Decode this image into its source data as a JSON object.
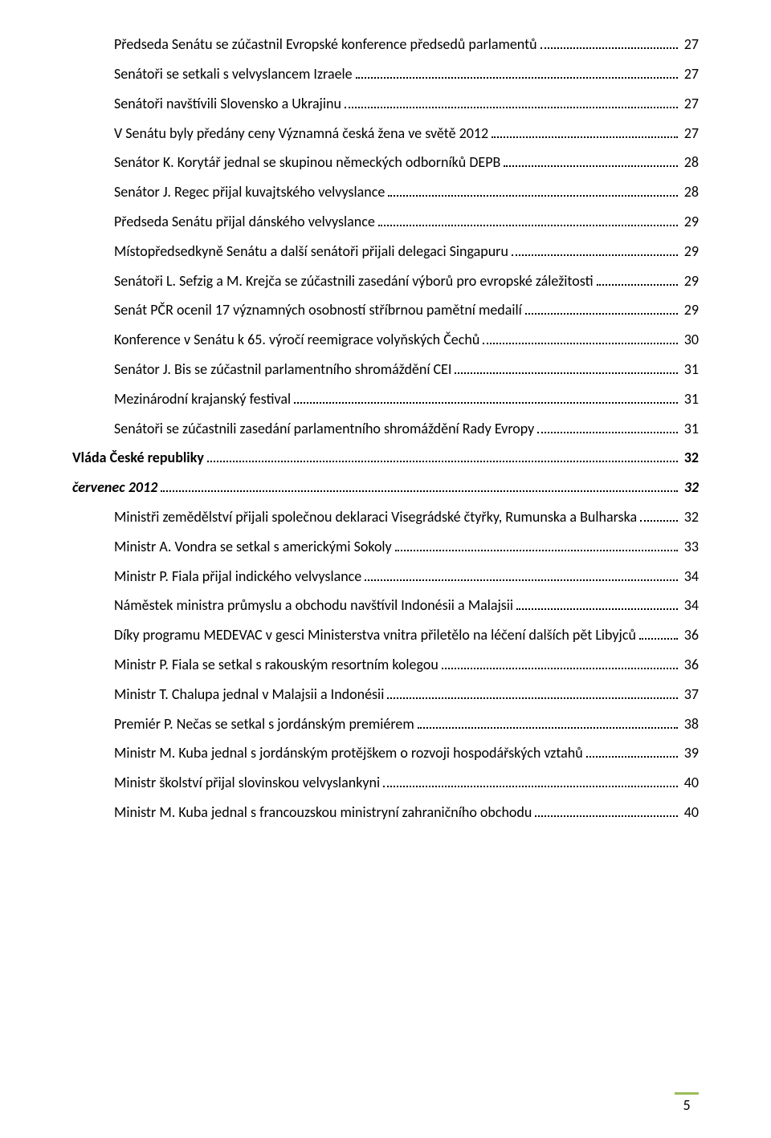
{
  "toc": [
    {
      "level": 2,
      "style": "",
      "label": "Předseda Senátu se zúčastnil Evropské konference předsedů parlamentů",
      "page": "27"
    },
    {
      "level": 2,
      "style": "",
      "label": "Senátoři se setkali s velvyslancem Izraele",
      "page": "27"
    },
    {
      "level": 2,
      "style": "",
      "label": "Senátoři navštívili Slovensko a Ukrajinu",
      "page": "27"
    },
    {
      "level": 2,
      "style": "",
      "label": "V Senátu byly předány ceny Významná česká žena ve světě 2012",
      "page": "27"
    },
    {
      "level": 2,
      "style": "",
      "label": "Senátor K. Korytář jednal se skupinou německých odborníků DEPB",
      "page": "28"
    },
    {
      "level": 2,
      "style": "",
      "label": "Senátor J. Regec přijal kuvajtského velvyslance",
      "page": "28"
    },
    {
      "level": 2,
      "style": "",
      "label": "Předseda Senátu přijal dánského velvyslance",
      "page": "29"
    },
    {
      "level": 2,
      "style": "",
      "label": "Místopředsedkyně Senátu a další senátoři přijali delegaci Singapuru",
      "page": "29"
    },
    {
      "level": 2,
      "style": "",
      "label": "Senátoři L. Sefzig a M. Krejča se zúčastnili zasedání výborů pro evropské záležitosti",
      "page": "29"
    },
    {
      "level": 2,
      "style": "",
      "label": "Senát PČR ocenil 17 významných osobností stříbrnou pamětní medailí",
      "page": "29"
    },
    {
      "level": 2,
      "style": "",
      "label": "Konference v Senátu k 65. výročí reemigrace volyňských Čechů",
      "page": "30"
    },
    {
      "level": 2,
      "style": "",
      "label": "Senátor J. Bis se zúčastnil parlamentního shromáždění CEI",
      "page": "31"
    },
    {
      "level": 2,
      "style": "",
      "label": "Mezinárodní krajanský festival",
      "page": "31"
    },
    {
      "level": 2,
      "style": "",
      "label": "Senátoři se zúčastnili zasedání parlamentního shromáždění Rady Evropy",
      "page": "31"
    },
    {
      "level": 1,
      "style": "bold",
      "label": "Vláda České republiky",
      "page": "32"
    },
    {
      "level": 1,
      "style": "italic",
      "label": "červenec 2012",
      "page": "32"
    },
    {
      "level": 2,
      "style": "",
      "label": "Ministři zemědělství přijali společnou deklaraci Visegrádské čtyřky, Rumunska a Bulharska",
      "page": "32"
    },
    {
      "level": 2,
      "style": "",
      "label": "Ministr A. Vondra se setkal s americkými Sokoly",
      "page": "33"
    },
    {
      "level": 2,
      "style": "",
      "label": "Ministr P. Fiala přijal indického velvyslance",
      "page": "34"
    },
    {
      "level": 2,
      "style": "",
      "label": "Náměstek ministra průmyslu a obchodu navštívil Indonésii a Malajsii",
      "page": "34"
    },
    {
      "level": 2,
      "style": "",
      "label": "Díky programu MEDEVAC v gesci Ministerstva vnitra přiletělo na léčení dalších pět Libyjců",
      "page": "36"
    },
    {
      "level": 2,
      "style": "",
      "label": "Ministr P. Fiala se setkal s rakouským resortním kolegou",
      "page": "36"
    },
    {
      "level": 2,
      "style": "",
      "label": "Ministr T. Chalupa jednal v Malajsii a Indonésii",
      "page": "37"
    },
    {
      "level": 2,
      "style": "",
      "label": "Premiér P. Nečas se setkal s jordánským premiérem",
      "page": "38"
    },
    {
      "level": 2,
      "style": "",
      "label": "Ministr M. Kuba jednal s jordánským protějškem o rozvoji hospodářských vztahů",
      "page": "39"
    },
    {
      "level": 2,
      "style": "",
      "label": "Ministr školství přijal slovinskou velvyslankyni",
      "page": "40"
    },
    {
      "level": 2,
      "style": "",
      "label": "Ministr M. Kuba jednal s francouzskou ministryní zahraničního obchodu",
      "page": "40"
    }
  ],
  "page_number": "5",
  "accent_color": "#9CBB59"
}
